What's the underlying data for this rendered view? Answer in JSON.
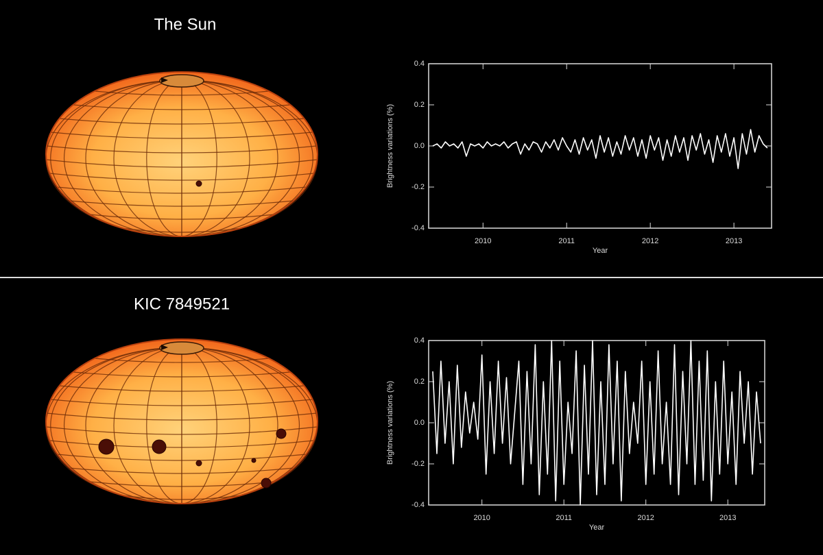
{
  "chart_data": [
    {
      "type": "line",
      "title": "The Sun",
      "x_label": "Year",
      "y_label": "Brightness variations (%)",
      "xlim": [
        2009.35,
        2013.45
      ],
      "xticks": [
        2010,
        2011,
        2012,
        2013
      ],
      "ylim": [
        -0.4,
        0.4
      ],
      "yticks": [
        0.4,
        0.2,
        {
          "value": 0,
          "label": "0.0"
        },
        -0.2,
        -0.4
      ],
      "color": "#ffffff",
      "x": [
        2009.4,
        2009.45,
        2009.5,
        2009.55,
        2009.6,
        2009.65,
        2009.7,
        2009.75,
        2009.8,
        2009.85,
        2009.9,
        2009.95,
        2010.0,
        2010.05,
        2010.1,
        2010.15,
        2010.2,
        2010.25,
        2010.3,
        2010.35,
        2010.4,
        2010.45,
        2010.5,
        2010.55,
        2010.6,
        2010.65,
        2010.7,
        2010.75,
        2010.8,
        2010.85,
        2010.9,
        2010.95,
        2011.0,
        2011.05,
        2011.1,
        2011.15,
        2011.2,
        2011.25,
        2011.3,
        2011.35,
        2011.4,
        2011.45,
        2011.5,
        2011.55,
        2011.6,
        2011.65,
        2011.7,
        2011.75,
        2011.8,
        2011.85,
        2011.9,
        2011.95,
        2012.0,
        2012.05,
        2012.1,
        2012.15,
        2012.2,
        2012.25,
        2012.3,
        2012.35,
        2012.4,
        2012.45,
        2012.5,
        2012.55,
        2012.6,
        2012.65,
        2012.7,
        2012.75,
        2012.8,
        2012.85,
        2012.9,
        2012.95,
        2013.0,
        2013.05,
        2013.1,
        2013.15,
        2013.2,
        2013.25,
        2013.3,
        2013.35,
        2013.4
      ],
      "values": [
        0.0,
        0.01,
        -0.01,
        0.02,
        0.0,
        0.01,
        -0.01,
        0.02,
        -0.05,
        0.01,
        0.0,
        0.01,
        -0.01,
        0.02,
        0.0,
        0.01,
        0.0,
        0.02,
        -0.01,
        0.01,
        0.02,
        -0.04,
        0.01,
        -0.02,
        0.02,
        0.01,
        -0.03,
        0.02,
        -0.01,
        0.03,
        -0.02,
        0.04,
        0.0,
        -0.03,
        0.03,
        -0.04,
        0.04,
        -0.02,
        0.03,
        -0.06,
        0.05,
        -0.03,
        0.04,
        -0.05,
        0.02,
        -0.04,
        0.05,
        -0.02,
        0.04,
        -0.05,
        0.03,
        -0.06,
        0.05,
        -0.02,
        0.04,
        -0.07,
        0.03,
        -0.05,
        0.05,
        -0.03,
        0.04,
        -0.07,
        0.05,
        -0.02,
        0.06,
        -0.04,
        0.03,
        -0.08,
        0.05,
        -0.03,
        0.06,
        -0.05,
        0.04,
        -0.11,
        0.06,
        -0.04,
        0.08,
        -0.03,
        0.05,
        0.01,
        -0.01
      ]
    },
    {
      "type": "line",
      "title": "KIC 7849521",
      "x_label": "Year",
      "y_label": "Brightness variations (%)",
      "xlim": [
        2009.35,
        2013.45
      ],
      "xticks": [
        2010,
        2011,
        2012,
        2013
      ],
      "ylim": [
        -0.4,
        0.4
      ],
      "yticks": [
        0.4,
        0.2,
        {
          "value": 0,
          "label": "0.0"
        },
        -0.2,
        -0.4
      ],
      "color": "#ffffff",
      "x": [
        2009.4,
        2009.45,
        2009.5,
        2009.55,
        2009.6,
        2009.65,
        2009.7,
        2009.75,
        2009.8,
        2009.85,
        2009.9,
        2009.95,
        2010.0,
        2010.05,
        2010.1,
        2010.15,
        2010.2,
        2010.25,
        2010.3,
        2010.35,
        2010.4,
        2010.45,
        2010.5,
        2010.55,
        2010.6,
        2010.65,
        2010.7,
        2010.75,
        2010.8,
        2010.85,
        2010.9,
        2010.95,
        2011.0,
        2011.05,
        2011.1,
        2011.15,
        2011.2,
        2011.25,
        2011.3,
        2011.35,
        2011.4,
        2011.45,
        2011.5,
        2011.55,
        2011.6,
        2011.65,
        2011.7,
        2011.75,
        2011.8,
        2011.85,
        2011.9,
        2011.95,
        2012.0,
        2012.05,
        2012.1,
        2012.15,
        2012.2,
        2012.25,
        2012.3,
        2012.35,
        2012.4,
        2012.45,
        2012.5,
        2012.55,
        2012.6,
        2012.65,
        2012.7,
        2012.75,
        2012.8,
        2012.85,
        2012.9,
        2012.95,
        2013.0,
        2013.05,
        2013.1,
        2013.15,
        2013.2,
        2013.25,
        2013.3,
        2013.35,
        2013.4
      ],
      "values": [
        0.25,
        -0.15,
        0.3,
        -0.1,
        0.2,
        -0.2,
        0.28,
        -0.12,
        0.15,
        -0.05,
        0.1,
        -0.08,
        0.33,
        -0.25,
        0.2,
        -0.15,
        0.3,
        -0.1,
        0.22,
        -0.2,
        0.05,
        0.3,
        -0.3,
        0.25,
        -0.2,
        0.38,
        -0.35,
        0.2,
        -0.25,
        0.4,
        -0.38,
        0.3,
        -0.3,
        0.1,
        -0.15,
        0.35,
        -0.4,
        0.28,
        -0.25,
        0.4,
        -0.35,
        0.2,
        -0.3,
        0.38,
        -0.2,
        0.3,
        -0.38,
        0.25,
        -0.15,
        0.1,
        -0.1,
        0.3,
        -0.3,
        0.2,
        -0.25,
        0.35,
        -0.2,
        0.1,
        -0.3,
        0.38,
        -0.35,
        0.25,
        -0.2,
        0.4,
        -0.3,
        0.3,
        -0.28,
        0.35,
        -0.38,
        0.2,
        -0.25,
        0.3,
        -0.2,
        0.15,
        -0.3,
        0.25,
        -0.1,
        0.2,
        -0.25,
        0.15,
        -0.1
      ]
    }
  ]
}
